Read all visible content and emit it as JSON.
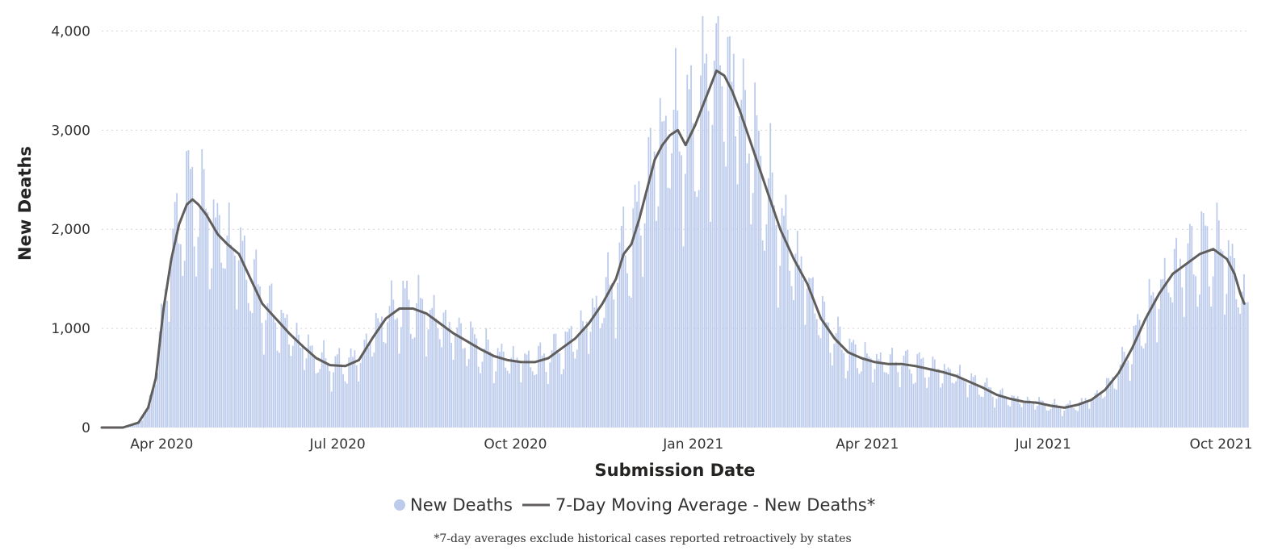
{
  "chart_data": {
    "type": "bar",
    "title": "",
    "xlabel": "Submission Date",
    "ylabel": "New Deaths",
    "ylim": [
      0,
      4150
    ],
    "y_ticks": [
      0,
      1000,
      2000,
      3000,
      4000
    ],
    "y_tick_labels": [
      "0",
      "1,000",
      "2,000",
      "3,000",
      "4,000"
    ],
    "x_range": [
      "2020-03-01",
      "2021-10-15"
    ],
    "x_ticks": [
      {
        "date": "2020-04-01",
        "label": "Apr 2020"
      },
      {
        "date": "2020-07-01",
        "label": "Jul 2020"
      },
      {
        "date": "2020-10-01",
        "label": "Oct 2020"
      },
      {
        "date": "2021-01-01",
        "label": "Jan 2021"
      },
      {
        "date": "2021-04-01",
        "label": "Apr 2021"
      },
      {
        "date": "2021-07-01",
        "label": "Jul 2021"
      },
      {
        "date": "2021-10-01",
        "label": "Oct 2021"
      }
    ],
    "grid": "horizontal-dotted",
    "legend_position": "bottom",
    "series": [
      {
        "name": "New Deaths",
        "type": "bar",
        "color": "#bccbec",
        "legend_marker": "circle"
      },
      {
        "name": "7-Day Moving Average - New Deaths*",
        "type": "line",
        "color": "#605e5c",
        "legend_marker": "line"
      }
    ],
    "moving_average": {
      "x": [
        "2020-03-01",
        "2020-03-12",
        "2020-03-20",
        "2020-03-25",
        "2020-03-29",
        "2020-04-02",
        "2020-04-06",
        "2020-04-10",
        "2020-04-14",
        "2020-04-17",
        "2020-04-20",
        "2020-04-24",
        "2020-04-30",
        "2020-05-05",
        "2020-05-11",
        "2020-05-17",
        "2020-05-23",
        "2020-05-30",
        "2020-06-06",
        "2020-06-13",
        "2020-06-20",
        "2020-06-27",
        "2020-07-05",
        "2020-07-12",
        "2020-07-19",
        "2020-07-26",
        "2020-08-02",
        "2020-08-09",
        "2020-08-16",
        "2020-08-23",
        "2020-08-30",
        "2020-09-06",
        "2020-09-13",
        "2020-09-20",
        "2020-09-27",
        "2020-10-04",
        "2020-10-11",
        "2020-10-18",
        "2020-10-25",
        "2020-11-01",
        "2020-11-08",
        "2020-11-15",
        "2020-11-22",
        "2020-11-26",
        "2020-11-30",
        "2020-12-04",
        "2020-12-08",
        "2020-12-12",
        "2020-12-16",
        "2020-12-20",
        "2020-12-24",
        "2020-12-28",
        "2021-01-02",
        "2021-01-06",
        "2021-01-10",
        "2021-01-13",
        "2021-01-17",
        "2021-01-21",
        "2021-01-25",
        "2021-02-01",
        "2021-02-08",
        "2021-02-15",
        "2021-02-22",
        "2021-03-01",
        "2021-03-08",
        "2021-03-15",
        "2021-03-22",
        "2021-03-29",
        "2021-04-05",
        "2021-04-12",
        "2021-04-19",
        "2021-04-26",
        "2021-05-03",
        "2021-05-10",
        "2021-05-17",
        "2021-05-24",
        "2021-05-31",
        "2021-06-07",
        "2021-06-14",
        "2021-06-21",
        "2021-06-28",
        "2021-07-05",
        "2021-07-12",
        "2021-07-19",
        "2021-07-26",
        "2021-08-02",
        "2021-08-09",
        "2021-08-16",
        "2021-08-23",
        "2021-08-30",
        "2021-09-06",
        "2021-09-13",
        "2021-09-20",
        "2021-09-27",
        "2021-10-04",
        "2021-10-08",
        "2021-10-11",
        "2021-10-13"
      ],
      "y": [
        0,
        0,
        50,
        200,
        500,
        1200,
        1700,
        2050,
        2250,
        2300,
        2250,
        2150,
        1950,
        1850,
        1750,
        1500,
        1250,
        1100,
        950,
        820,
        700,
        630,
        620,
        680,
        900,
        1100,
        1200,
        1200,
        1150,
        1050,
        950,
        870,
        790,
        720,
        680,
        660,
        660,
        700,
        800,
        900,
        1050,
        1250,
        1500,
        1750,
        1850,
        2100,
        2400,
        2700,
        2850,
        2950,
        3000,
        2850,
        3050,
        3250,
        3450,
        3600,
        3550,
        3400,
        3200,
        2800,
        2400,
        2000,
        1700,
        1450,
        1100,
        900,
        760,
        700,
        660,
        640,
        640,
        620,
        590,
        560,
        520,
        460,
        400,
        330,
        290,
        260,
        250,
        220,
        200,
        230,
        280,
        380,
        550,
        800,
        1100,
        1350,
        1550,
        1650,
        1750,
        1800,
        1700,
        1550,
        1350,
        1250
      ]
    },
    "daily_bars_note": "Daily bar heights approximated as the moving average with day-to-day (weekly) fluctuation."
  },
  "legend": {
    "items": [
      {
        "label": "New Deaths"
      },
      {
        "label": "7-Day Moving Average - New Deaths*"
      }
    ]
  },
  "footnote": "*7-day averages exclude historical cases reported retroactively by states"
}
